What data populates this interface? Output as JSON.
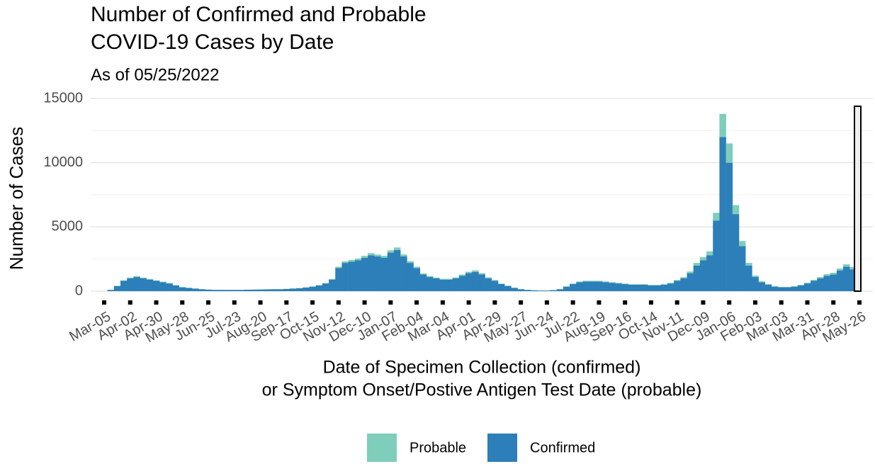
{
  "chart_data": {
    "type": "stacked_bar",
    "title": [
      "Number of Confirmed and Probable",
      "COVID-19 Cases by Date"
    ],
    "subtitle": "As of 05/25/2022",
    "y_label": "Number of Cases",
    "x_label": [
      "Date of Specimen Collection (confirmed)",
      "or Symptom Onset/Postive Antigen Test Date (probable)"
    ],
    "categories": [
      "Mar-05",
      null,
      null,
      null,
      "Apr-02",
      null,
      null,
      null,
      "Apr-30",
      null,
      null,
      null,
      "May-28",
      null,
      null,
      null,
      "Jun-25",
      null,
      null,
      null,
      "Jul-23",
      null,
      null,
      null,
      "Aug-20",
      null,
      null,
      null,
      "Sep-17",
      null,
      null,
      null,
      "Oct-15",
      null,
      null,
      null,
      "Nov-12",
      null,
      null,
      null,
      "Dec-10",
      null,
      null,
      null,
      "Jan-07",
      null,
      null,
      null,
      "Feb-04",
      null,
      null,
      null,
      "Mar-04",
      null,
      null,
      null,
      "Apr-01",
      null,
      null,
      null,
      "Apr-29",
      null,
      null,
      null,
      "May-27",
      null,
      null,
      null,
      "Jun-24",
      null,
      null,
      null,
      "Jul-22",
      null,
      null,
      null,
      "Aug-19",
      null,
      null,
      null,
      "Sep-16",
      null,
      null,
      null,
      "Oct-14",
      null,
      null,
      null,
      "Nov-11",
      null,
      null,
      null,
      "Dec-09",
      null,
      null,
      null,
      "Jan-06",
      null,
      null,
      null,
      "Feb-03",
      null,
      null,
      null,
      "Mar-03",
      null,
      null,
      null,
      "Mar-31",
      null,
      null,
      null,
      "Apr-28",
      null,
      null,
      null,
      "May-26"
    ],
    "series": [
      {
        "name": "Probable",
        "color": "#7fcdbb",
        "values": [
          0,
          5,
          20,
          40,
          60,
          70,
          60,
          50,
          40,
          40,
          30,
          20,
          15,
          10,
          10,
          8,
          6,
          5,
          5,
          5,
          5,
          5,
          5,
          5,
          5,
          5,
          5,
          5,
          8,
          10,
          10,
          15,
          20,
          25,
          30,
          50,
          100,
          120,
          130,
          140,
          150,
          160,
          150,
          150,
          180,
          200,
          160,
          130,
          100,
          80,
          70,
          60,
          60,
          60,
          70,
          90,
          110,
          120,
          100,
          80,
          60,
          40,
          30,
          20,
          10,
          8,
          5,
          4,
          4,
          6,
          10,
          25,
          40,
          50,
          60,
          60,
          60,
          60,
          50,
          50,
          40,
          40,
          40,
          40,
          40,
          40,
          40,
          50,
          70,
          90,
          130,
          200,
          250,
          300,
          600,
          1800,
          1500,
          700,
          400,
          200,
          110,
          70,
          50,
          35,
          30,
          30,
          35,
          45,
          60,
          80,
          100,
          120,
          130,
          160,
          190,
          170,
          null
        ]
      },
      {
        "name": "Confirmed",
        "color": "#2c7fb8",
        "values": [
          0,
          100,
          400,
          800,
          1000,
          1100,
          1000,
          900,
          800,
          700,
          600,
          450,
          300,
          250,
          200,
          150,
          120,
          100,
          100,
          100,
          100,
          100,
          110,
          120,
          130,
          140,
          150,
          150,
          170,
          200,
          230,
          280,
          350,
          450,
          600,
          900,
          1800,
          2200,
          2300,
          2400,
          2600,
          2800,
          2700,
          2600,
          3000,
          3200,
          2700,
          2200,
          1800,
          1300,
          1100,
          1000,
          900,
          900,
          1000,
          1200,
          1400,
          1500,
          1300,
          1000,
          800,
          550,
          400,
          250,
          150,
          100,
          70,
          50,
          50,
          80,
          150,
          350,
          550,
          700,
          750,
          750,
          750,
          700,
          650,
          600,
          550,
          500,
          500,
          500,
          450,
          450,
          500,
          600,
          800,
          1000,
          1400,
          2000,
          2400,
          2800,
          5500,
          12000,
          10000,
          6000,
          3500,
          2000,
          1100,
          700,
          500,
          350,
          300,
          300,
          350,
          450,
          600,
          800,
          1000,
          1200,
          1300,
          1600,
          1900,
          1700,
          null
        ]
      }
    ],
    "ylim": [
      0,
      15000
    ],
    "yticks": [
      0,
      5000,
      10000,
      15000
    ],
    "minor_yticks": [
      2500,
      7500,
      12500
    ],
    "grid": true,
    "legend": "bottom"
  }
}
